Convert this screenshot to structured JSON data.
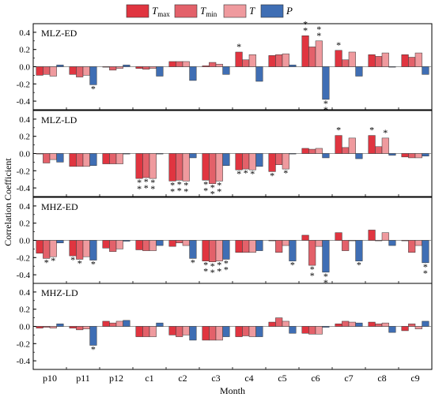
{
  "chart_data": {
    "type": "bar",
    "xlabel": "Month",
    "ylabel": "Correlation Coefficient",
    "categories": [
      "p10",
      "p11",
      "p12",
      "c1",
      "c2",
      "c3",
      "c4",
      "c5",
      "c6",
      "c7",
      "c8",
      "c9"
    ],
    "yticks": [
      "0.4",
      "0.2",
      "0.0",
      "-0.2",
      "-0.4"
    ],
    "ylim": [
      -0.5,
      0.5
    ],
    "legend": [
      {
        "base": "T",
        "sub": "max",
        "italic": true,
        "color": "#e03540"
      },
      {
        "base": "T",
        "sub": "min",
        "italic": true,
        "color": "#e3616a"
      },
      {
        "base": "T",
        "sub": "",
        "italic": true,
        "color": "#ef9a9e"
      },
      {
        "base": "P",
        "sub": "",
        "italic": true,
        "color": "#3f6eb4"
      }
    ],
    "series_colors": [
      "#e03540",
      "#e3616a",
      "#ef9a9e",
      "#3f6eb4"
    ],
    "panels": [
      {
        "name": "MLZ-ED",
        "values": [
          [
            -0.1,
            -0.09,
            -0.11,
            0.02
          ],
          [
            -0.09,
            -0.12,
            -0.1,
            -0.21
          ],
          [
            0.0,
            -0.04,
            -0.02,
            0.02
          ],
          [
            -0.02,
            -0.03,
            -0.02,
            -0.11
          ],
          [
            0.06,
            0.06,
            0.06,
            -0.16
          ],
          [
            0.01,
            0.05,
            0.03,
            -0.09
          ],
          [
            0.17,
            0.08,
            0.14,
            -0.17
          ],
          [
            0.13,
            0.14,
            0.15,
            0.02
          ],
          [
            0.36,
            0.23,
            0.3,
            -0.38
          ],
          [
            0.19,
            0.08,
            0.17,
            -0.11
          ],
          [
            0.14,
            0.12,
            0.16,
            0.0
          ],
          [
            0.14,
            0.11,
            0.16,
            -0.09
          ]
        ],
        "stars": [
          [
            0,
            0,
            0,
            0
          ],
          [
            0,
            0,
            0,
            1
          ],
          [
            0,
            0,
            0,
            0
          ],
          [
            0,
            0,
            0,
            0
          ],
          [
            0,
            0,
            0,
            0
          ],
          [
            0,
            0,
            0,
            0
          ],
          [
            1,
            0,
            0,
            0
          ],
          [
            0,
            0,
            0,
            0
          ],
          [
            2,
            0,
            2,
            2
          ],
          [
            1,
            0,
            0,
            0
          ],
          [
            0,
            0,
            0,
            0
          ],
          [
            0,
            0,
            0,
            0
          ]
        ]
      },
      {
        "name": "MLZ-LD",
        "values": [
          [
            0.0,
            -0.11,
            -0.07,
            -0.1
          ],
          [
            -0.15,
            -0.15,
            -0.15,
            -0.14
          ],
          [
            -0.12,
            -0.12,
            -0.12,
            0.0
          ],
          [
            -0.29,
            -0.28,
            -0.29,
            0.0
          ],
          [
            -0.32,
            -0.31,
            -0.32,
            -0.05
          ],
          [
            -0.31,
            -0.35,
            -0.32,
            -0.14
          ],
          [
            -0.19,
            -0.18,
            -0.19,
            -0.15
          ],
          [
            -0.21,
            -0.13,
            -0.18,
            0.0
          ],
          [
            0.06,
            0.05,
            0.06,
            -0.05
          ],
          [
            0.21,
            0.07,
            0.18,
            -0.06
          ],
          [
            0.21,
            0.08,
            0.18,
            -0.02
          ],
          [
            -0.04,
            -0.05,
            -0.05,
            -0.03
          ]
        ],
        "stars": [
          [
            0,
            0,
            0,
            0
          ],
          [
            0,
            0,
            0,
            0
          ],
          [
            0,
            0,
            0,
            0
          ],
          [
            2,
            2,
            2,
            0
          ],
          [
            2,
            2,
            2,
            0
          ],
          [
            2,
            2,
            2,
            0
          ],
          [
            1,
            1,
            1,
            0
          ],
          [
            1,
            0,
            1,
            0
          ],
          [
            0,
            0,
            0,
            0
          ],
          [
            1,
            0,
            0,
            0
          ],
          [
            1,
            0,
            1,
            0
          ],
          [
            0,
            0,
            0,
            0
          ]
        ]
      },
      {
        "name": "MHZ-ED",
        "values": [
          [
            -0.15,
            -0.21,
            -0.19,
            -0.03
          ],
          [
            -0.18,
            -0.22,
            -0.19,
            -0.23
          ],
          [
            -0.09,
            -0.13,
            -0.1,
            -0.01
          ],
          [
            -0.11,
            -0.12,
            -0.12,
            -0.06
          ],
          [
            -0.07,
            -0.03,
            -0.06,
            -0.21
          ],
          [
            -0.24,
            -0.25,
            -0.24,
            -0.22
          ],
          [
            -0.14,
            -0.14,
            -0.14,
            -0.12
          ],
          [
            0.0,
            -0.14,
            -0.06,
            -0.24
          ],
          [
            0.06,
            -0.29,
            -0.07,
            -0.37
          ],
          [
            0.09,
            -0.12,
            0.0,
            -0.24
          ],
          [
            0.12,
            0.0,
            0.09,
            -0.06
          ],
          [
            0.0,
            -0.14,
            -0.06,
            -0.26
          ]
        ],
        "stars": [
          [
            0,
            1,
            1,
            0
          ],
          [
            1,
            1,
            0,
            1
          ],
          [
            0,
            0,
            0,
            0
          ],
          [
            0,
            0,
            0,
            0
          ],
          [
            0,
            0,
            0,
            1
          ],
          [
            2,
            2,
            2,
            2
          ],
          [
            0,
            0,
            0,
            0
          ],
          [
            0,
            0,
            0,
            1
          ],
          [
            0,
            2,
            0,
            2
          ],
          [
            0,
            0,
            0,
            1
          ],
          [
            0,
            0,
            0,
            0
          ],
          [
            0,
            0,
            0,
            2
          ]
        ]
      },
      {
        "name": "MHZ-LD",
        "values": [
          [
            -0.02,
            -0.01,
            -0.02,
            0.03
          ],
          [
            -0.02,
            -0.04,
            -0.03,
            -0.22
          ],
          [
            0.06,
            0.04,
            0.06,
            0.07
          ],
          [
            -0.12,
            -0.12,
            -0.12,
            0.04
          ],
          [
            -0.1,
            -0.12,
            -0.1,
            -0.16
          ],
          [
            -0.16,
            -0.16,
            -0.16,
            -0.12
          ],
          [
            -0.12,
            -0.11,
            -0.12,
            -0.12
          ],
          [
            0.05,
            0.1,
            0.06,
            -0.08
          ],
          [
            -0.08,
            -0.09,
            -0.09,
            -0.01
          ],
          [
            0.03,
            0.06,
            0.05,
            0.04
          ],
          [
            0.05,
            0.03,
            0.04,
            -0.07
          ],
          [
            -0.05,
            0.03,
            -0.03,
            0.06
          ]
        ],
        "stars": [
          [
            0,
            0,
            0,
            0
          ],
          [
            0,
            0,
            0,
            1
          ],
          [
            0,
            0,
            0,
            0
          ],
          [
            0,
            0,
            0,
            0
          ],
          [
            0,
            0,
            0,
            0
          ],
          [
            0,
            0,
            0,
            0
          ],
          [
            0,
            0,
            0,
            0
          ],
          [
            0,
            0,
            0,
            0
          ],
          [
            0,
            0,
            0,
            0
          ],
          [
            0,
            0,
            0,
            0
          ],
          [
            0,
            0,
            0,
            0
          ],
          [
            0,
            0,
            0,
            0
          ]
        ]
      }
    ],
    "star_symbol": "*"
  }
}
